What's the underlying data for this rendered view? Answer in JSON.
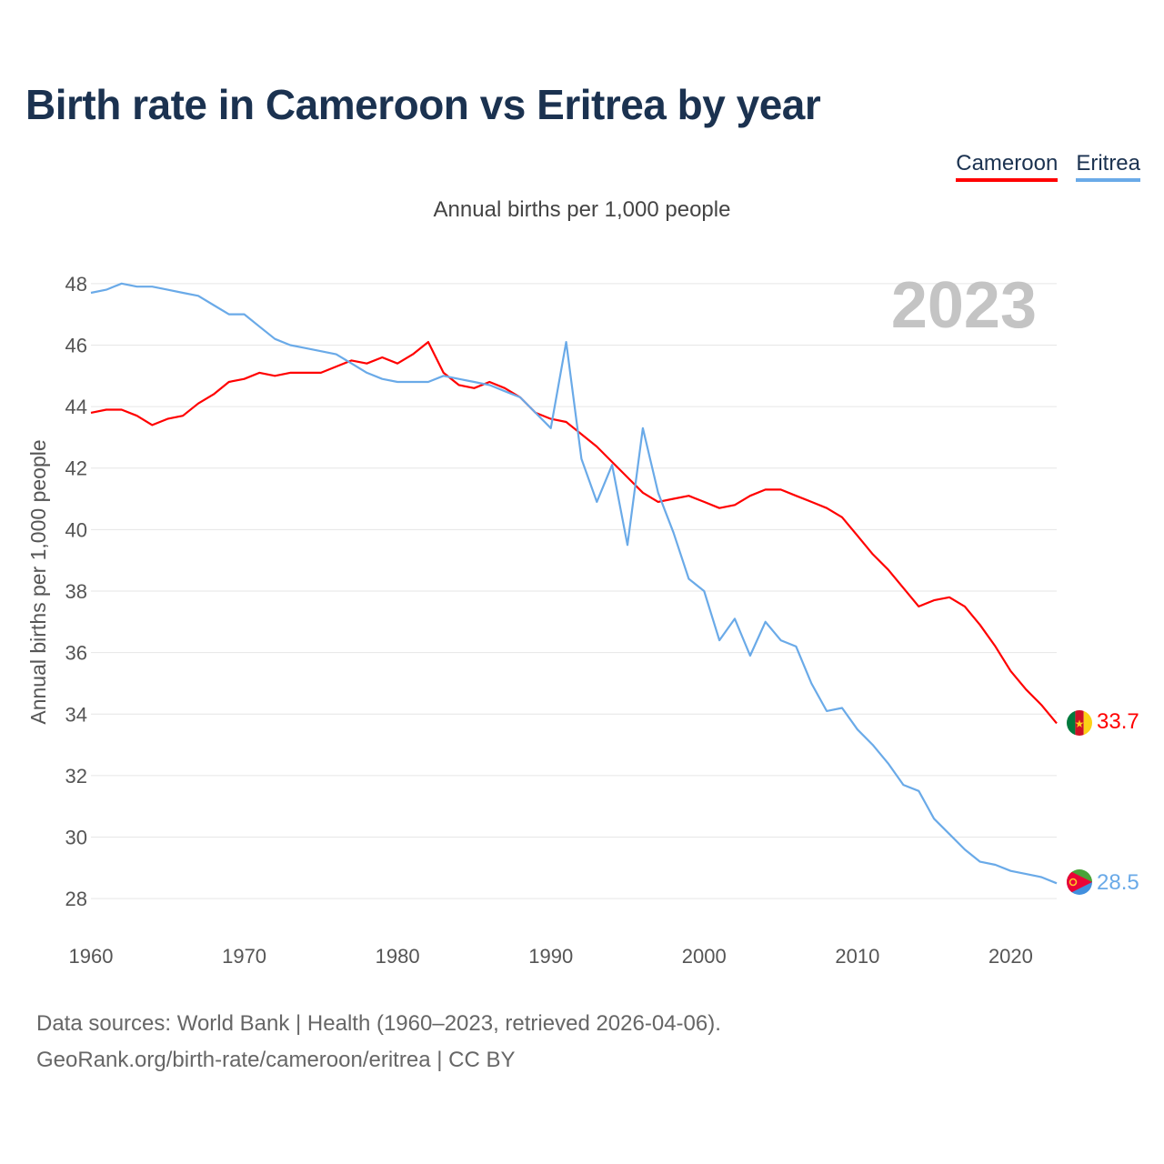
{
  "title": "Birth rate in Cameroon vs Eritrea by year",
  "subtitle": "Annual births per 1,000 people",
  "legend": [
    {
      "label": "Cameroon",
      "color": "#ff0000"
    },
    {
      "label": "Eritrea",
      "color": "#6aaae8"
    }
  ],
  "year_label": "2023",
  "footer": {
    "line1": "Data sources: World Bank | Health (1960–2023, retrieved 2026-04-06).",
    "line2": "GeoRank.org/birth-rate/cameroon/eritrea | CC BY"
  },
  "chart_data": {
    "type": "line",
    "title": "Birth rate in Cameroon vs Eritrea by year",
    "xlabel": "",
    "ylabel": "Annual births per 1,000 people",
    "xlim": [
      1960,
      2023
    ],
    "ylim": [
      27,
      49
    ],
    "xticks": [
      1960,
      1970,
      1980,
      1990,
      2000,
      2010,
      2020
    ],
    "yticks": [
      28,
      30,
      32,
      34,
      36,
      38,
      40,
      42,
      44,
      46,
      48
    ],
    "grid": true,
    "x_start": 1960,
    "series": [
      {
        "name": "Cameroon",
        "color": "#ff0000",
        "end_label": "33.7",
        "flag": "cameroon-flag",
        "values": [
          43.8,
          43.9,
          43.9,
          43.7,
          43.4,
          43.6,
          43.7,
          44.1,
          44.4,
          44.8,
          44.9,
          45.1,
          45.0,
          45.1,
          45.1,
          45.1,
          45.3,
          45.5,
          45.4,
          45.6,
          45.4,
          45.7,
          46.1,
          45.1,
          44.7,
          44.6,
          44.8,
          44.6,
          44.3,
          43.8,
          43.6,
          43.5,
          43.1,
          42.7,
          42.2,
          41.7,
          41.2,
          40.9,
          41.0,
          41.1,
          40.9,
          40.7,
          40.8,
          41.1,
          41.3,
          41.3,
          41.1,
          40.9,
          40.7,
          40.4,
          39.8,
          39.2,
          38.7,
          38.1,
          37.5,
          37.7,
          37.8,
          37.5,
          36.9,
          36.2,
          35.4,
          34.8,
          34.3,
          33.7
        ]
      },
      {
        "name": "Eritrea",
        "color": "#6aaae8",
        "end_label": "28.5",
        "flag": "eritrea-flag",
        "values": [
          47.7,
          47.8,
          48.0,
          47.9,
          47.9,
          47.8,
          47.7,
          47.6,
          47.3,
          47.0,
          47.0,
          46.6,
          46.2,
          46.0,
          45.9,
          45.8,
          45.7,
          45.4,
          45.1,
          44.9,
          44.8,
          44.8,
          44.8,
          45.0,
          44.9,
          44.8,
          44.7,
          44.5,
          44.3,
          43.8,
          43.3,
          46.1,
          42.3,
          40.9,
          42.1,
          39.5,
          43.3,
          41.2,
          39.9,
          38.4,
          38.0,
          36.4,
          37.1,
          35.9,
          37.0,
          36.4,
          36.2,
          35.0,
          34.1,
          34.2,
          33.5,
          33.0,
          32.4,
          31.7,
          31.5,
          30.6,
          30.1,
          29.6,
          29.2,
          29.1,
          28.9,
          28.8,
          28.7,
          28.5
        ]
      }
    ]
  }
}
